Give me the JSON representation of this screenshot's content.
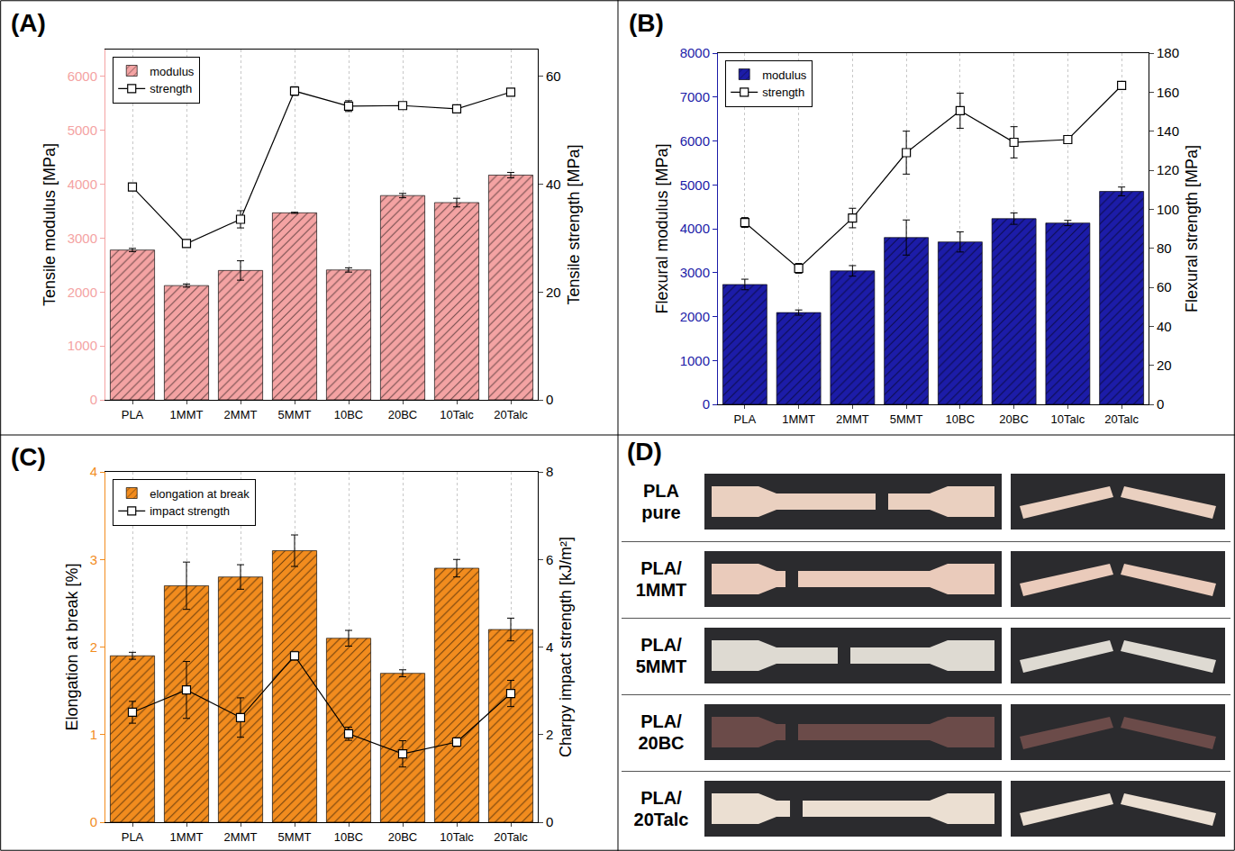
{
  "chart_data": [
    {
      "type": "bar",
      "title": "(A)",
      "categories": [
        "PLA",
        "1MMT",
        "2MMT",
        "5MMT",
        "10BC",
        "20BC",
        "10Talc",
        "20Talc"
      ],
      "series": [
        {
          "name": "modulus",
          "type": "bar",
          "color": "#f4a3a3",
          "values": [
            2780,
            2120,
            2400,
            3470,
            2410,
            3790,
            3660,
            4170
          ],
          "errors": [
            30,
            30,
            180,
            10,
            40,
            40,
            80,
            50
          ]
        },
        {
          "name": "strength",
          "type": "line",
          "axis": "y2",
          "color": "#000000",
          "marker": "square",
          "values": [
            39.5,
            29,
            33.5,
            57.3,
            54.5,
            54.6,
            54,
            57.1
          ],
          "errors": [
            0.6,
            0.5,
            1.6,
            0.8,
            1,
            0.4,
            0.4,
            0.6
          ]
        }
      ],
      "ylabel": "Tensile modulus [MPa]",
      "y2label": "Tensile strength [MPa]",
      "ylim": [
        0,
        6500
      ],
      "yticks": [
        0,
        1000,
        2000,
        3000,
        4000,
        5000,
        6000
      ],
      "y2lim": [
        0,
        65
      ],
      "y2ticks": [
        0,
        20,
        40,
        60
      ],
      "legend": "upper left",
      "grid": true
    },
    {
      "type": "bar",
      "title": "(B)",
      "categories": [
        "PLA",
        "1MMT",
        "2MMT",
        "5MMT",
        "10BC",
        "20BC",
        "10Talc",
        "20Talc"
      ],
      "series": [
        {
          "name": "modulus",
          "type": "bar",
          "color": "#1c1ca8",
          "values": [
            2730,
            2090,
            3040,
            3800,
            3700,
            4230,
            4130,
            4850
          ],
          "errors": [
            120,
            60,
            120,
            400,
            230,
            130,
            60,
            100
          ]
        },
        {
          "name": "strength",
          "type": "line",
          "axis": "y2",
          "color": "#000000",
          "marker": "square",
          "values": [
            93.2,
            69.7,
            95.5,
            129,
            150.5,
            134.3,
            135.7,
            163.4
          ],
          "errors": [
            2.5,
            2.5,
            5,
            11,
            9,
            8,
            2,
            1
          ]
        }
      ],
      "ylabel": "Flexural modulus [MPa]",
      "y2label": "Flexural strength [MPa]",
      "ylim": [
        0,
        8000
      ],
      "yticks": [
        0,
        1000,
        2000,
        3000,
        4000,
        5000,
        6000,
        7000,
        8000
      ],
      "y2lim": [
        0,
        180
      ],
      "y2ticks": [
        0,
        20,
        40,
        60,
        80,
        100,
        120,
        140,
        160,
        180
      ],
      "legend": "upper left",
      "grid": true
    },
    {
      "type": "bar",
      "title": "(C)",
      "categories": [
        "PLA",
        "1MMT",
        "2MMT",
        "5MMT",
        "10BC",
        "20BC",
        "10Talc",
        "20Talc"
      ],
      "series": [
        {
          "name": "elongation at break",
          "type": "bar",
          "color": "#f28c1e",
          "values": [
            1.9,
            2.7,
            2.8,
            3.1,
            2.1,
            1.7,
            2.9,
            2.2
          ],
          "errors": [
            0.04,
            0.27,
            0.14,
            0.18,
            0.09,
            0.04,
            0.1,
            0.13
          ]
        },
        {
          "name": "impact strength",
          "type": "line",
          "axis": "y2",
          "color": "#000000",
          "marker": "square",
          "values": [
            2.51,
            3.02,
            2.39,
            3.8,
            2.02,
            1.56,
            1.83,
            2.94
          ],
          "errors": [
            0.25,
            0.65,
            0.45,
            0.1,
            0.15,
            0.3,
            0.1,
            0.3
          ]
        }
      ],
      "ylabel": "Elongation at break [%]",
      "y2label": "Charpy impact strength [kJ/m²]",
      "ylim": [
        0,
        4
      ],
      "yticks": [
        0,
        1,
        2,
        3,
        4
      ],
      "y2lim": [
        0,
        8
      ],
      "y2ticks": [
        0,
        2,
        4,
        6,
        8
      ],
      "legend": "upper left",
      "grid": true
    }
  ],
  "photos": {
    "title": "(D)",
    "rows": [
      {
        "label": "PLA pure",
        "color": "#ead0c0"
      },
      {
        "label": "PLA/ 1MMT",
        "color": "#eacbbb"
      },
      {
        "label": "PLA/ 5MMT",
        "color": "#dedad2"
      },
      {
        "label": "PLA/ 20BC",
        "color": "#6b4b49"
      },
      {
        "label": "PLA/ 20Talc",
        "color": "#ebdfd2"
      }
    ]
  }
}
